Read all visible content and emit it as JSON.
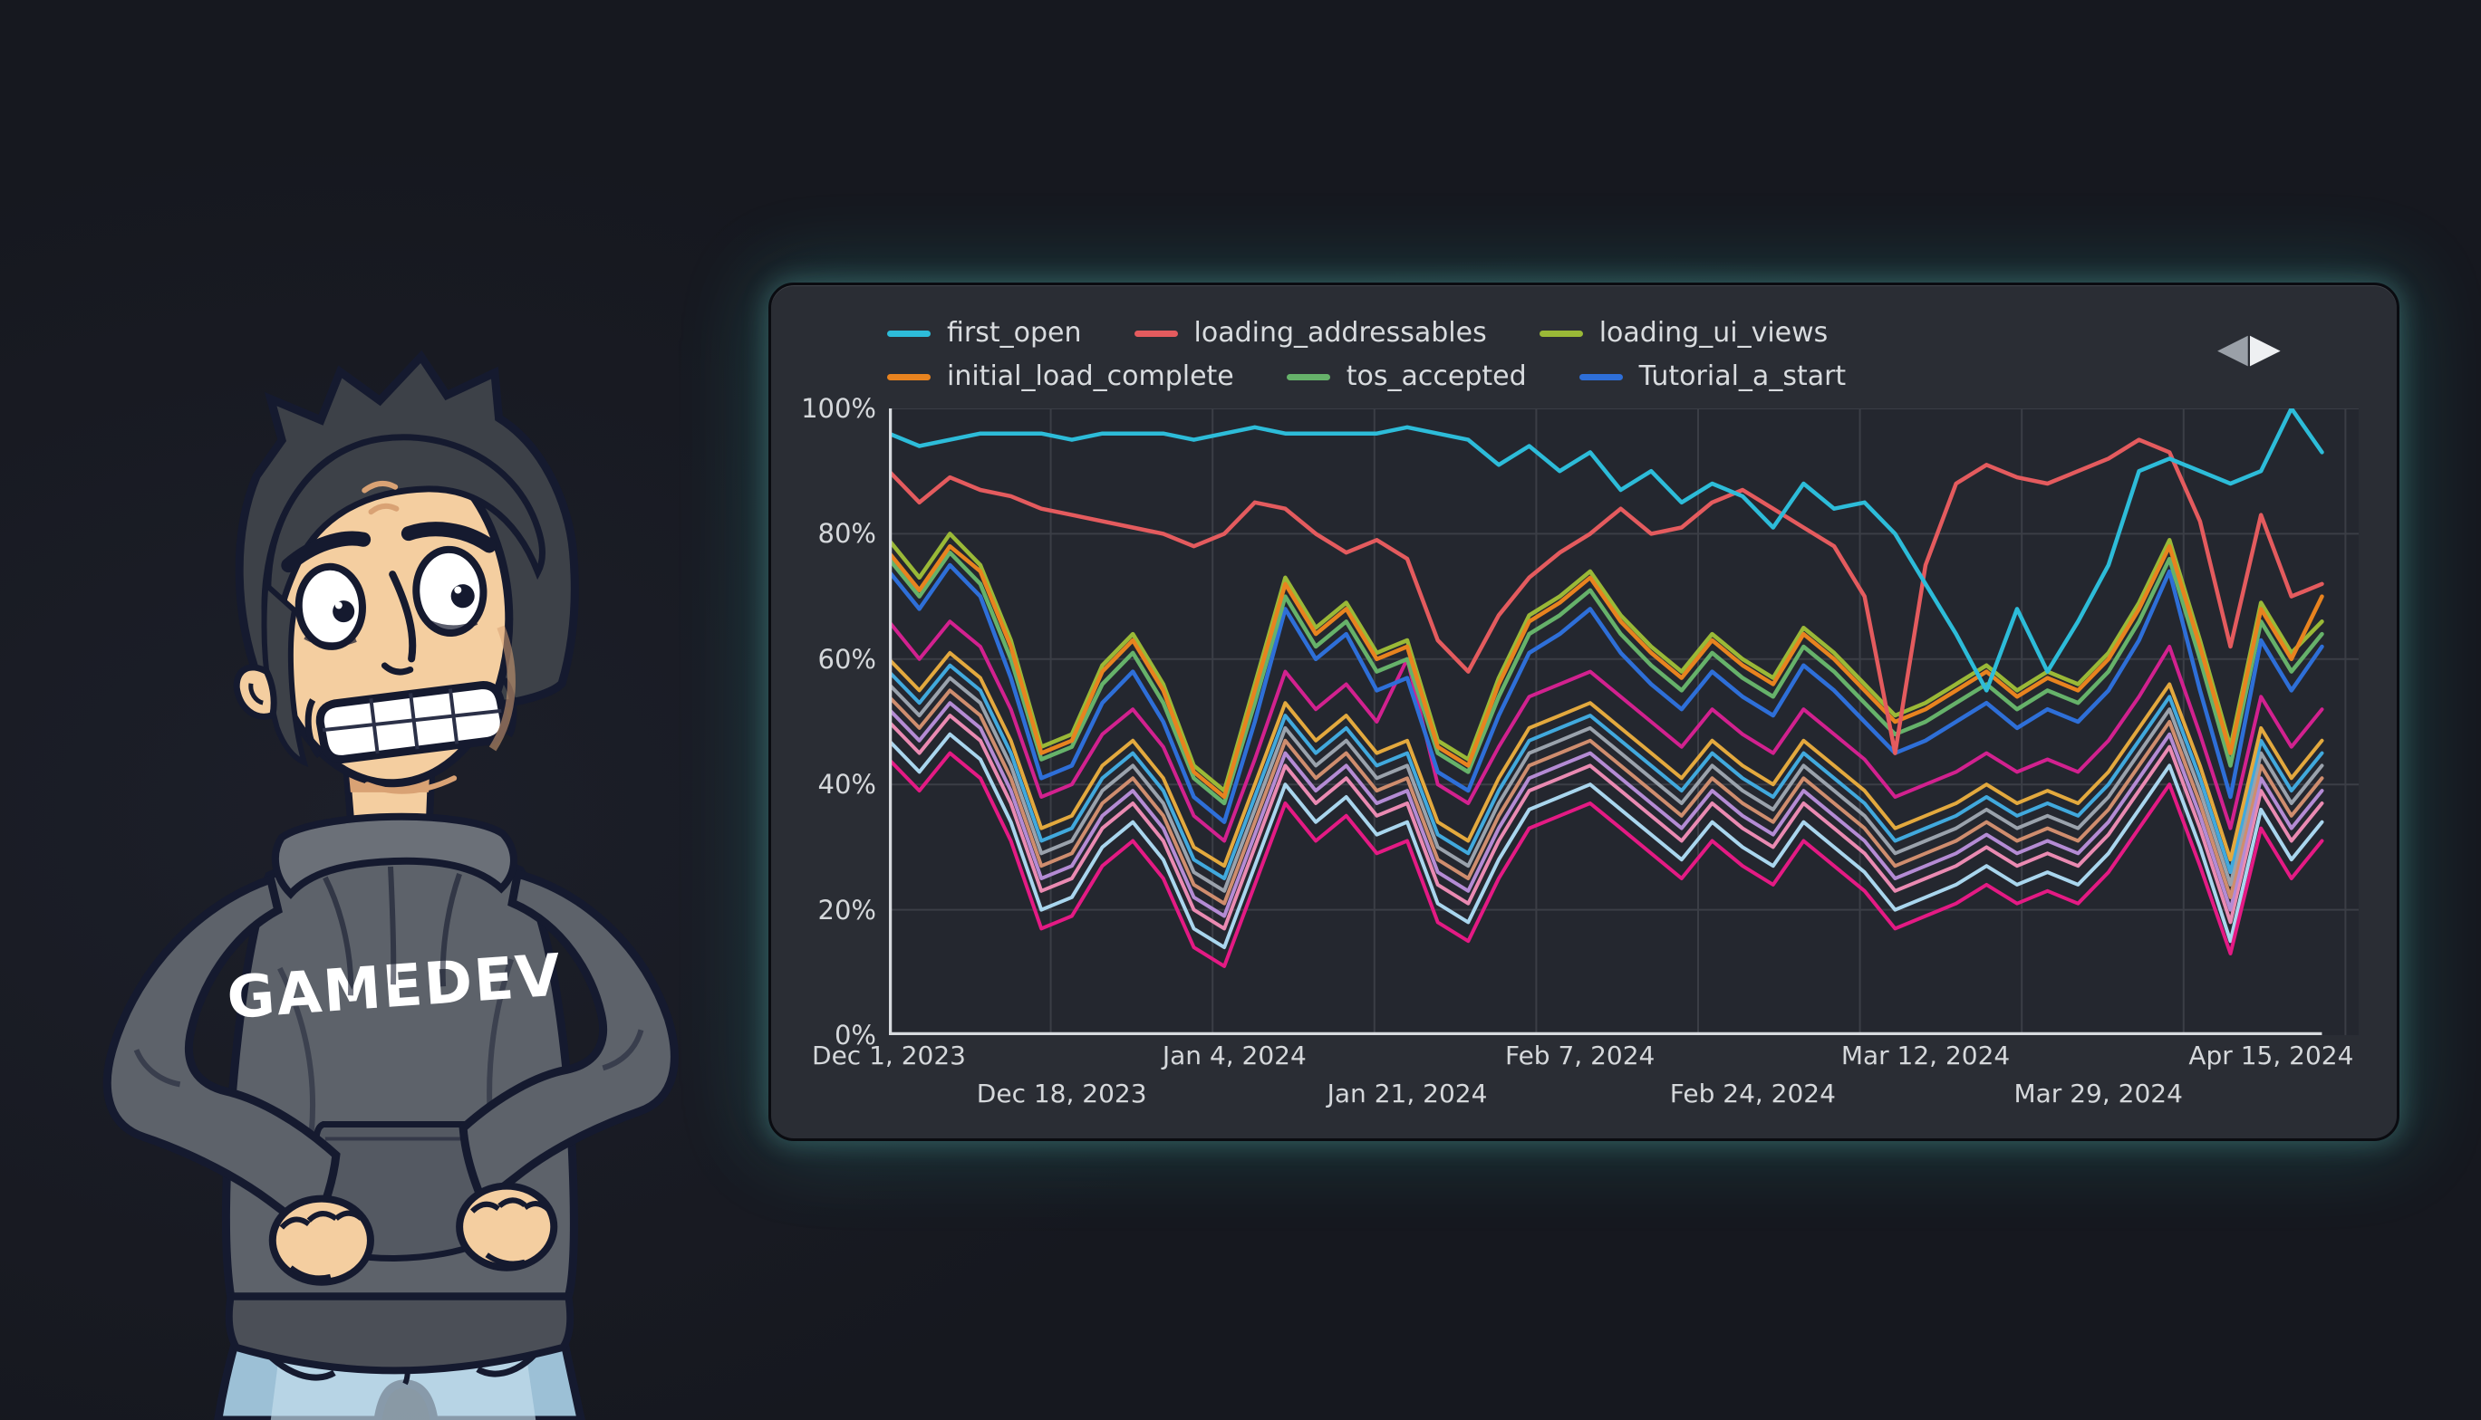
{
  "character": {
    "shirt_text": "GAMEDEV",
    "colors": {
      "hair": "#3d4148",
      "skin": "#f4cea0",
      "skin_shadow": "#d9a274",
      "hoodie": "#5d626a",
      "hoodie_dark": "#4b4f57",
      "hoodie_light": "#6b7078",
      "jeans": "#9cc0d6",
      "jeans_light": "#c6dfec",
      "outline": "#151a2f"
    }
  },
  "chart_panel": {
    "background": "#2a2d34",
    "plot_background": "#24272f",
    "grid_color": "#3b3e46",
    "axis_color": "#d7dade",
    "glow_color": "#39d0c7",
    "legend": {
      "rows": [
        [
          {
            "label": "first_open",
            "color": "#2dbcd9"
          },
          {
            "label": "loading_addressables",
            "color": "#e45b5e"
          },
          {
            "label": "loading_ui_views",
            "color": "#9ab937"
          }
        ],
        [
          {
            "label": "initial_load_complete",
            "color": "#e8831f"
          },
          {
            "label": "tos_accepted",
            "color": "#66b26a"
          },
          {
            "label": "Tutorial_a_start",
            "color": "#2e6fd8"
          }
        ]
      ],
      "pager": {
        "prev": "◀",
        "next": "▶"
      }
    },
    "y_axis": {
      "ticks": [
        {
          "label": "100%",
          "value": 100
        },
        {
          "label": "80%",
          "value": 80
        },
        {
          "label": "60%",
          "value": 60
        },
        {
          "label": "40%",
          "value": 40
        },
        {
          "label": "20%",
          "value": 20
        },
        {
          "label": "0%",
          "value": 0
        }
      ]
    },
    "x_axis": {
      "ticks": [
        {
          "label": "Dec 1, 2023",
          "day": 0,
          "row": 1
        },
        {
          "label": "Dec 18, 2023",
          "day": 17,
          "row": 2
        },
        {
          "label": "Jan 4, 2024",
          "day": 34,
          "row": 1
        },
        {
          "label": "Jan 21, 2024",
          "day": 51,
          "row": 2
        },
        {
          "label": "Feb 7, 2024",
          "day": 68,
          "row": 1
        },
        {
          "label": "Feb 24, 2024",
          "day": 85,
          "row": 2
        },
        {
          "label": "Mar 12, 2024",
          "day": 102,
          "row": 1
        },
        {
          "label": "Mar 29, 2024",
          "day": 119,
          "row": 2
        },
        {
          "label": "Apr 15, 2024",
          "day": 136,
          "row": 1
        }
      ]
    }
  },
  "chart_data": {
    "type": "line",
    "title": "",
    "xlabel": "",
    "ylabel": "",
    "ylim": [
      0,
      100
    ],
    "y_unit": "%",
    "x_unit": "days since Dec 1, 2023",
    "x_range_labels": [
      "Dec 1, 2023",
      "Apr 15, 2024"
    ],
    "legend_position": "top",
    "grid": true,
    "x": [
      0,
      3,
      6,
      9,
      12,
      15,
      18,
      21,
      24,
      27,
      30,
      33,
      36,
      39,
      42,
      45,
      48,
      51,
      54,
      57,
      60,
      63,
      66,
      69,
      72,
      75,
      78,
      81,
      84,
      87,
      90,
      93,
      96,
      99,
      102,
      105,
      108,
      111,
      114,
      117,
      120,
      123,
      126,
      129,
      132,
      135,
      138,
      141
    ],
    "series": [
      {
        "name": "unlabeled_pale_blue",
        "in_legend": false,
        "color": "#a9d6ee",
        "values": [
          47,
          42,
          48,
          44,
          34,
          20,
          22,
          30,
          34,
          28,
          17,
          14,
          27,
          40,
          34,
          38,
          32,
          34,
          21,
          18,
          28,
          36,
          38,
          40,
          36,
          32,
          28,
          34,
          30,
          27,
          34,
          30,
          26,
          20,
          22,
          24,
          27,
          24,
          26,
          24,
          29,
          36,
          43,
          30,
          15,
          36,
          28,
          34
        ]
      },
      {
        "name": "unlabeled_crimson",
        "in_legend": false,
        "color": "#e41a84",
        "values": [
          44,
          39,
          45,
          41,
          31,
          17,
          19,
          27,
          31,
          25,
          14,
          11,
          24,
          37,
          31,
          35,
          29,
          31,
          18,
          15,
          25,
          33,
          35,
          37,
          33,
          29,
          25,
          31,
          27,
          24,
          31,
          27,
          23,
          17,
          19,
          21,
          24,
          21,
          23,
          21,
          26,
          33,
          40,
          27,
          13,
          33,
          25,
          31
        ]
      },
      {
        "name": "unlabeled_rose",
        "in_legend": false,
        "color": "#ea8ab2",
        "values": [
          50,
          45,
          51,
          47,
          37,
          23,
          25,
          33,
          37,
          31,
          20,
          17,
          30,
          43,
          37,
          41,
          35,
          37,
          24,
          21,
          31,
          39,
          41,
          43,
          39,
          35,
          31,
          37,
          33,
          30,
          37,
          33,
          29,
          23,
          25,
          27,
          30,
          27,
          29,
          27,
          32,
          39,
          46,
          33,
          18,
          39,
          31,
          37
        ]
      },
      {
        "name": "unlabeled_orchid",
        "in_legend": false,
        "color": "#b48bd4",
        "values": [
          52,
          47,
          53,
          49,
          39,
          25,
          27,
          35,
          39,
          33,
          22,
          19,
          32,
          45,
          39,
          43,
          37,
          39,
          26,
          23,
          33,
          41,
          43,
          45,
          41,
          37,
          33,
          39,
          35,
          32,
          39,
          35,
          31,
          25,
          27,
          29,
          32,
          29,
          31,
          29,
          34,
          41,
          48,
          35,
          20,
          41,
          33,
          39
        ]
      },
      {
        "name": "unlabeled_tan",
        "in_legend": false,
        "color": "#cf8d6e",
        "values": [
          54,
          49,
          55,
          51,
          41,
          27,
          29,
          37,
          41,
          35,
          24,
          21,
          34,
          47,
          41,
          45,
          39,
          41,
          28,
          25,
          35,
          43,
          45,
          47,
          43,
          39,
          35,
          41,
          37,
          34,
          41,
          37,
          33,
          27,
          29,
          31,
          34,
          31,
          33,
          31,
          36,
          43,
          50,
          37,
          22,
          43,
          35,
          41
        ]
      },
      {
        "name": "unlabeled_gray",
        "in_legend": false,
        "color": "#9aa2ac",
        "values": [
          56,
          51,
          57,
          53,
          43,
          29,
          31,
          39,
          43,
          37,
          26,
          23,
          36,
          49,
          43,
          47,
          41,
          43,
          30,
          27,
          37,
          45,
          47,
          49,
          45,
          41,
          37,
          43,
          39,
          36,
          43,
          39,
          35,
          29,
          31,
          33,
          36,
          33,
          35,
          33,
          38,
          45,
          52,
          39,
          24,
          45,
          37,
          43
        ]
      },
      {
        "name": "unlabeled_sky_blue",
        "in_legend": false,
        "color": "#41a9dd",
        "values": [
          58,
          53,
          59,
          55,
          45,
          31,
          33,
          41,
          45,
          39,
          28,
          25,
          38,
          51,
          45,
          49,
          43,
          45,
          32,
          29,
          39,
          47,
          49,
          51,
          47,
          43,
          39,
          45,
          41,
          38,
          45,
          41,
          37,
          31,
          33,
          35,
          38,
          35,
          37,
          35,
          40,
          47,
          54,
          41,
          26,
          47,
          39,
          45
        ]
      },
      {
        "name": "unlabeled_gold",
        "in_legend": false,
        "color": "#e3a93e",
        "values": [
          60,
          55,
          61,
          57,
          47,
          33,
          35,
          43,
          47,
          41,
          30,
          27,
          40,
          53,
          47,
          51,
          45,
          47,
          34,
          31,
          41,
          49,
          51,
          53,
          49,
          45,
          41,
          47,
          43,
          40,
          47,
          43,
          39,
          33,
          35,
          37,
          40,
          37,
          39,
          37,
          42,
          49,
          56,
          43,
          28,
          49,
          41,
          47
        ]
      },
      {
        "name": "unlabeled_magenta",
        "in_legend": false,
        "color": "#d2218f",
        "values": [
          66,
          60,
          66,
          62,
          52,
          38,
          40,
          48,
          52,
          46,
          35,
          31,
          44,
          58,
          52,
          56,
          50,
          60,
          40,
          37,
          46,
          54,
          56,
          58,
          54,
          50,
          46,
          52,
          48,
          45,
          52,
          48,
          44,
          38,
          40,
          42,
          45,
          42,
          44,
          42,
          47,
          54,
          62,
          48,
          33,
          54,
          46,
          52
        ]
      },
      {
        "name": "Tutorial_a_start",
        "in_legend": true,
        "color": "#2e6fd8",
        "values": [
          74,
          68,
          75,
          70,
          57,
          41,
          43,
          53,
          58,
          50,
          38,
          34,
          50,
          68,
          60,
          64,
          55,
          57,
          42,
          39,
          51,
          61,
          64,
          68,
          61,
          56,
          52,
          58,
          54,
          51,
          59,
          55,
          50,
          45,
          47,
          50,
          53,
          49,
          52,
          50,
          55,
          63,
          74,
          55,
          38,
          63,
          55,
          62
        ]
      },
      {
        "name": "tos_accepted",
        "in_legend": true,
        "color": "#66b26a",
        "values": [
          76,
          70,
          77,
          72,
          60,
          44,
          46,
          56,
          61,
          53,
          41,
          37,
          53,
          70,
          62,
          66,
          58,
          60,
          45,
          42,
          54,
          64,
          67,
          71,
          64,
          59,
          55,
          61,
          57,
          54,
          62,
          58,
          53,
          48,
          50,
          53,
          56,
          52,
          55,
          53,
          58,
          66,
          76,
          60,
          43,
          66,
          58,
          64
        ]
      },
      {
        "name": "loading_ui_views",
        "in_legend": true,
        "color": "#9ab937",
        "values": [
          79,
          73,
          80,
          75,
          63,
          46,
          48,
          59,
          64,
          56,
          43,
          39,
          56,
          73,
          65,
          69,
          61,
          63,
          47,
          44,
          57,
          67,
          70,
          74,
          67,
          62,
          58,
          64,
          60,
          57,
          65,
          61,
          56,
          51,
          53,
          56,
          59,
          55,
          58,
          56,
          61,
          69,
          79,
          63,
          46,
          69,
          61,
          66
        ]
      },
      {
        "name": "initial_load_complete",
        "in_legend": true,
        "color": "#e8831f",
        "values": [
          77,
          71,
          78,
          74,
          62,
          45,
          47,
          58,
          63,
          55,
          42,
          38,
          55,
          72,
          64,
          68,
          60,
          62,
          46,
          43,
          56,
          66,
          69,
          73,
          66,
          61,
          57,
          63,
          59,
          56,
          64,
          60,
          55,
          50,
          52,
          55,
          58,
          54,
          57,
          55,
          60,
          68,
          78,
          62,
          45,
          68,
          60,
          70
        ]
      },
      {
        "name": "loading_addressables",
        "in_legend": true,
        "color": "#e45b5e",
        "values": [
          90,
          85,
          89,
          87,
          86,
          84,
          83,
          82,
          81,
          80,
          78,
          80,
          85,
          84,
          80,
          77,
          79,
          76,
          63,
          58,
          67,
          73,
          77,
          80,
          84,
          80,
          81,
          85,
          87,
          84,
          81,
          78,
          70,
          45,
          75,
          88,
          91,
          89,
          88,
          90,
          92,
          95,
          93,
          82,
          62,
          83,
          70,
          72
        ]
      },
      {
        "name": "first_open",
        "in_legend": true,
        "color": "#2dbcd9",
        "values": [
          96,
          94,
          95,
          96,
          96,
          96,
          95,
          96,
          96,
          96,
          95,
          96,
          97,
          96,
          96,
          96,
          96,
          97,
          96,
          95,
          91,
          94,
          90,
          93,
          87,
          90,
          85,
          88,
          86,
          81,
          88,
          84,
          85,
          80,
          72,
          64,
          55,
          68,
          58,
          66,
          75,
          90,
          92,
          90,
          88,
          90,
          100,
          93
        ]
      }
    ]
  }
}
